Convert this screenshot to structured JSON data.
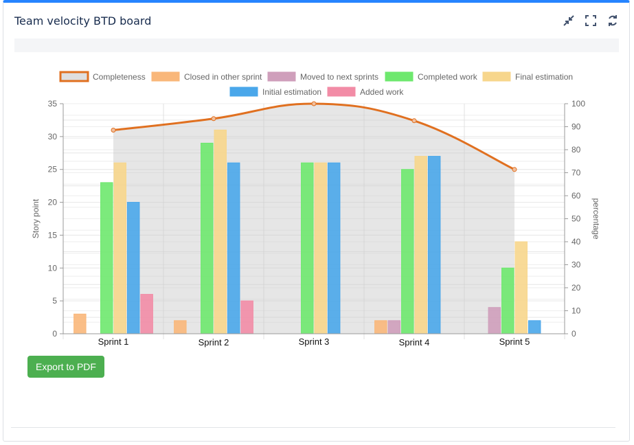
{
  "header": {
    "title": "Team velocity BTD board"
  },
  "icons": [
    "collapse-icon",
    "fullscreen-icon",
    "refresh-icon"
  ],
  "export_label": "Export to PDF",
  "chart_data": {
    "type": "bar",
    "categories": [
      "Sprint 1",
      "Sprint 2",
      "Sprint 3",
      "Sprint 4",
      "Sprint 5"
    ],
    "ylabel": "Story point",
    "y2label": "percentage",
    "ylim": [
      0,
      35
    ],
    "y2lim": [
      0,
      100
    ],
    "yticks": [
      "0",
      "5",
      "10",
      "15",
      "20",
      "25",
      "30",
      "35"
    ],
    "y2ticks": [
      "0",
      "10",
      "20",
      "30",
      "40",
      "50",
      "60",
      "70",
      "80",
      "90",
      "100"
    ],
    "series": [
      {
        "name": "Closed in other sprint",
        "values": [
          3,
          2,
          0,
          2,
          0
        ],
        "color": "#f9b77a"
      },
      {
        "name": "Moved to next sprints",
        "values": [
          0,
          0,
          0,
          2,
          4
        ],
        "color": "#cf9fbb"
      },
      {
        "name": "Completed work",
        "values": [
          23,
          29,
          26,
          25,
          10
        ],
        "color": "#6ee86e"
      },
      {
        "name": "Final estimation",
        "values": [
          26,
          31,
          26,
          27,
          14
        ],
        "color": "#f7d68c"
      },
      {
        "name": "Initial estimation",
        "values": [
          20,
          26,
          26,
          27,
          2
        ],
        "color": "#4aa7ea"
      },
      {
        "name": "Added work",
        "values": [
          6,
          5,
          0,
          0,
          0
        ],
        "color": "#f28ca6"
      }
    ],
    "line": {
      "name": "Completeness",
      "values": [
        88.5,
        93.5,
        100,
        92.6,
        71.4
      ],
      "color": "#e07020"
    },
    "legend": "top",
    "grid": true
  }
}
